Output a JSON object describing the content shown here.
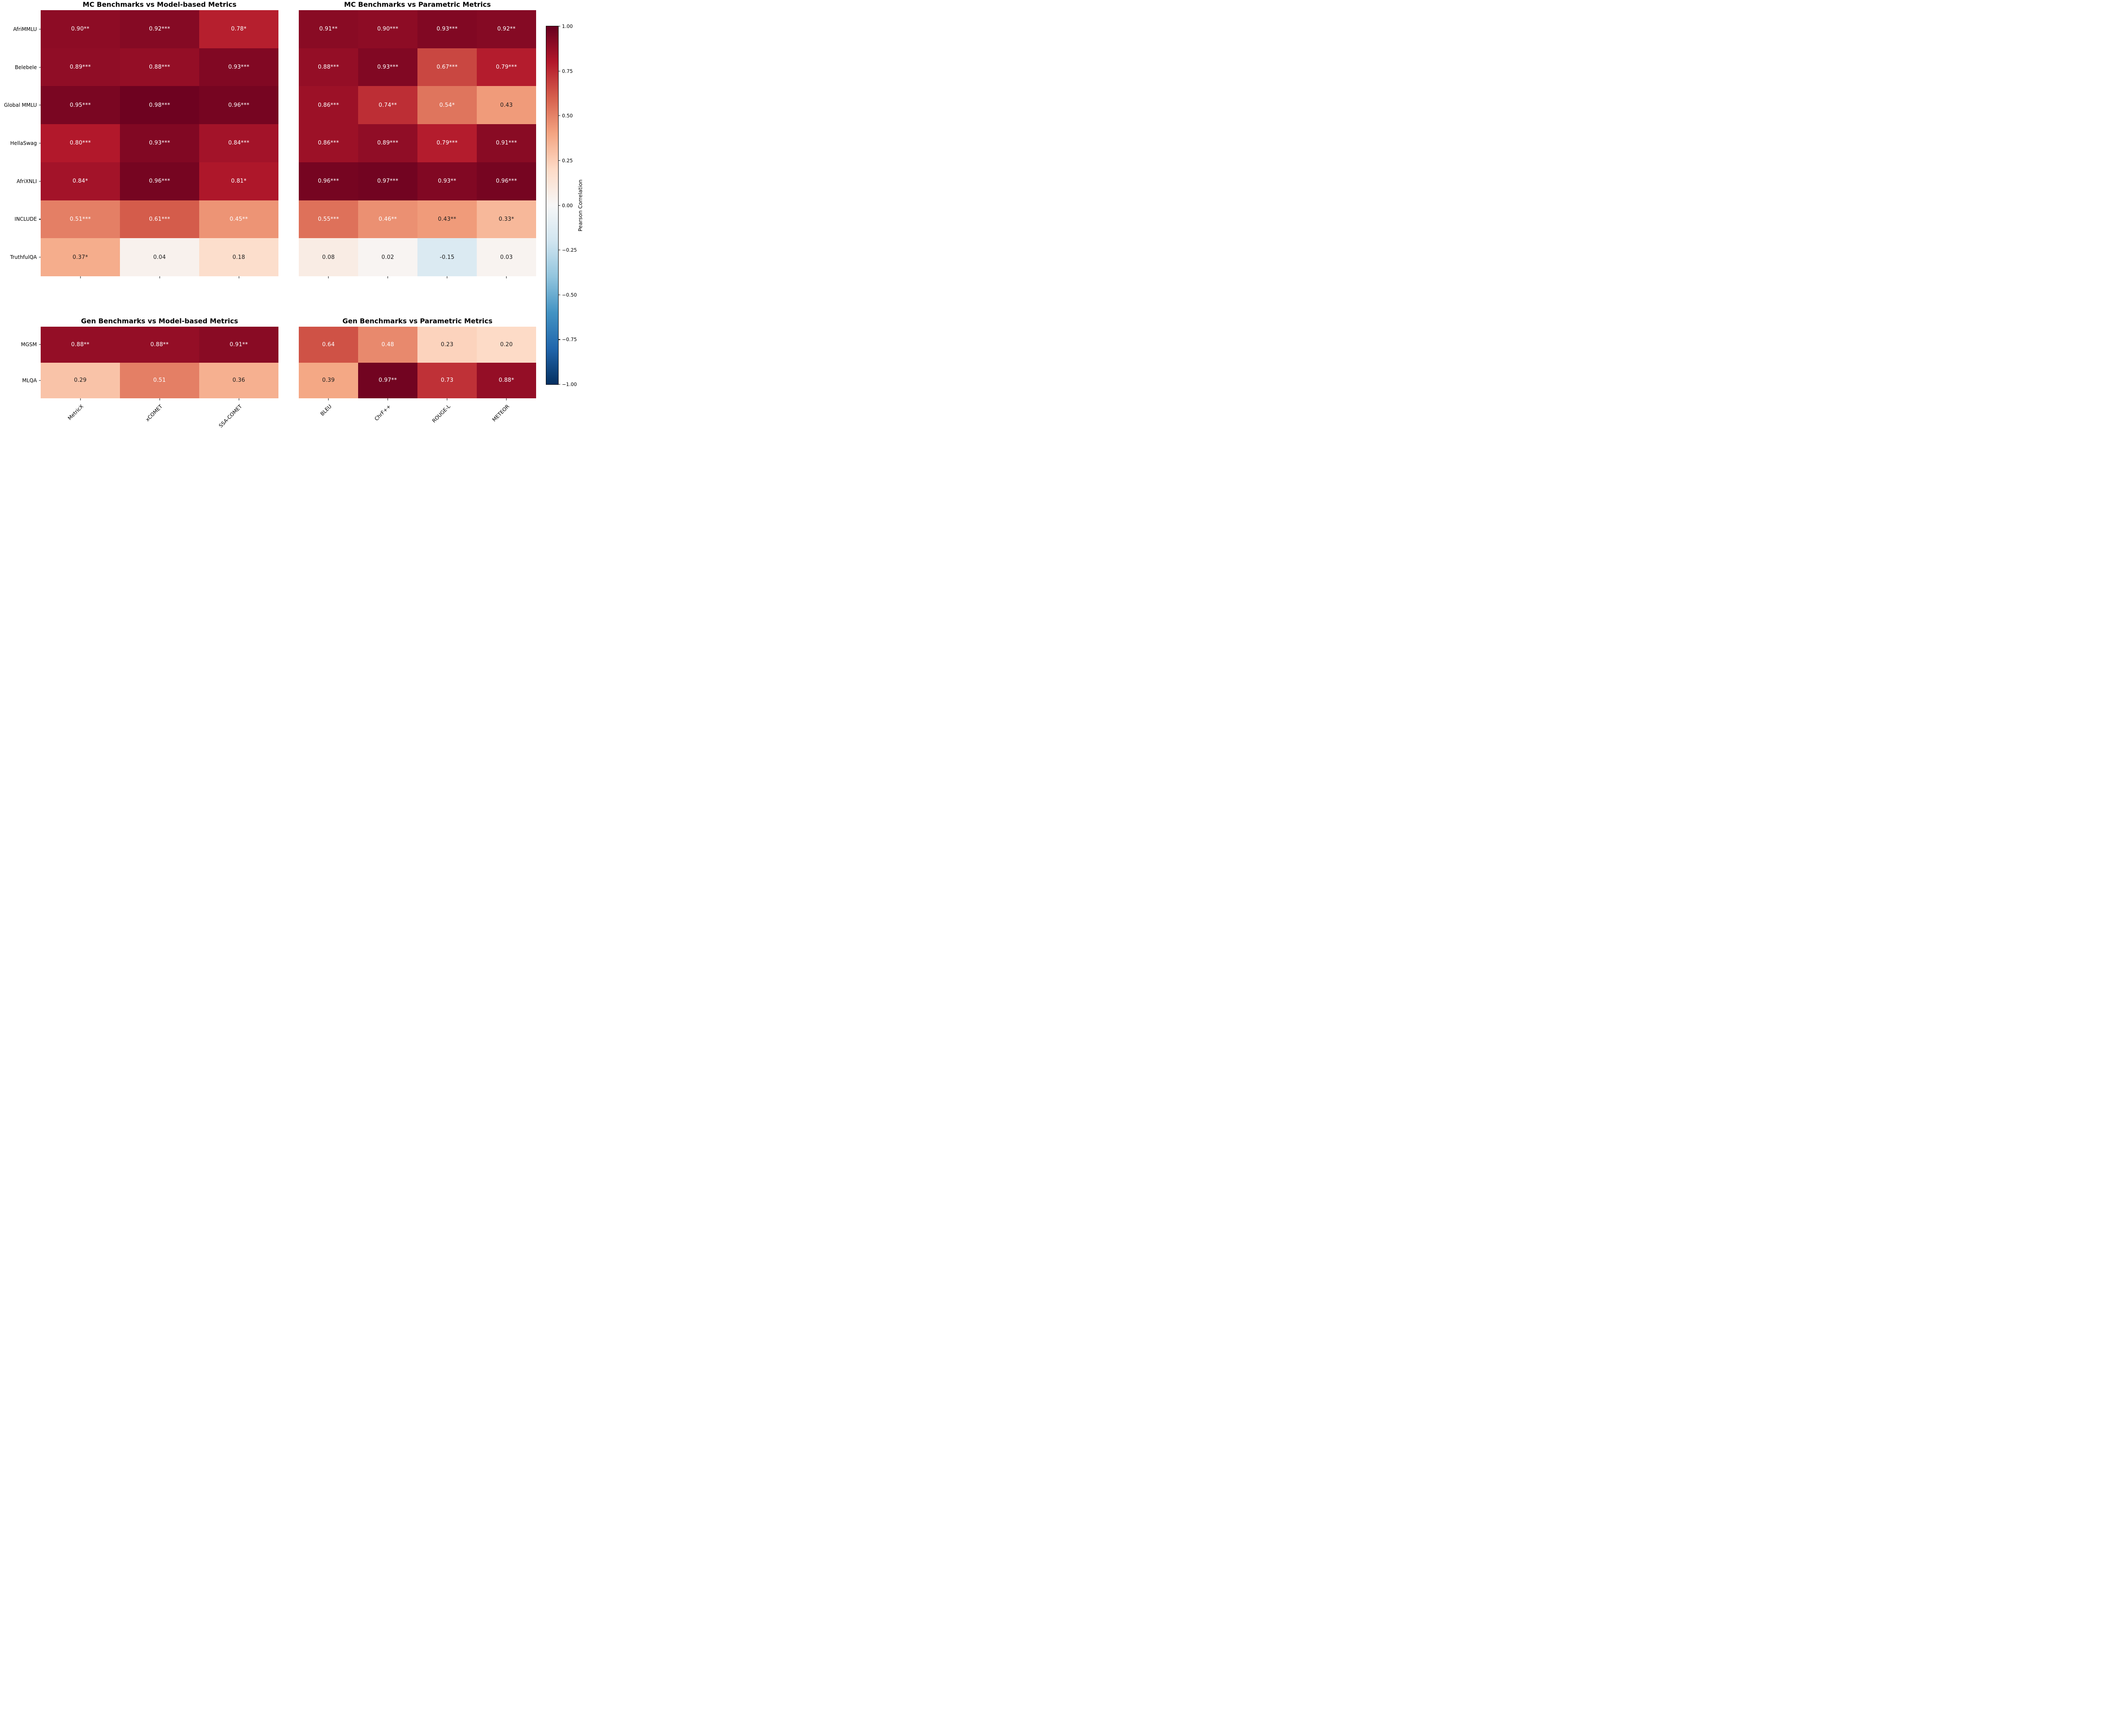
{
  "figure": {
    "background": "#ffffff"
  },
  "colormap": {
    "name": "RdBu_r",
    "vmin": -1,
    "vmax": 1,
    "anchors": [
      "#053061",
      "#2166ac",
      "#4393c3",
      "#92c5de",
      "#d1e5f0",
      "#f7f7f7",
      "#fddbc7",
      "#f4a582",
      "#d6604d",
      "#b2182b",
      "#67001f"
    ],
    "white_text_luminance_threshold": 0.408,
    "annotation_light_text_color": "#ffffff",
    "annotation_dark_text_color": "#1a1a1a"
  },
  "colorbar": {
    "label": "Pearson Correlation",
    "ticks": [
      "1.00",
      "0.75",
      "0.50",
      "0.25",
      "0.00",
      "−0.25",
      "−0.50",
      "−0.75",
      "−1.00"
    ]
  },
  "chart_data": [
    {
      "type": "heatmap",
      "title": "MC Benchmarks vs Model-based Metrics",
      "rows": [
        "AfriMMLU",
        "Belebele",
        "Global MMLU",
        "HellaSwag",
        "AfriXNLI",
        "INCLUDE",
        "TruthfulQA"
      ],
      "cols": [
        "MetricX",
        "xCOMET",
        "SSA-COMET"
      ],
      "values": [
        [
          0.9,
          0.92,
          0.78
        ],
        [
          0.89,
          0.88,
          0.93
        ],
        [
          0.95,
          0.98,
          0.96
        ],
        [
          0.8,
          0.93,
          0.84
        ],
        [
          0.84,
          0.96,
          0.81
        ],
        [
          0.51,
          0.61,
          0.45
        ],
        [
          0.37,
          0.04,
          0.18
        ]
      ],
      "annotations": [
        [
          "0.90**",
          "0.92***",
          "0.78*"
        ],
        [
          "0.89***",
          "0.88***",
          "0.93***"
        ],
        [
          "0.95***",
          "0.98***",
          "0.96***"
        ],
        [
          "0.80***",
          "0.93***",
          "0.84***"
        ],
        [
          "0.84*",
          "0.96***",
          "0.81*"
        ],
        [
          "0.51***",
          "0.61***",
          "0.45**"
        ],
        [
          "0.37*",
          "0.04",
          "0.18"
        ]
      ],
      "show_row_labels": true,
      "show_col_labels": false
    },
    {
      "type": "heatmap",
      "title": "MC Benchmarks vs Parametric Metrics",
      "rows": [
        "AfriMMLU",
        "Belebele",
        "Global MMLU",
        "HellaSwag",
        "AfriXNLI",
        "INCLUDE",
        "TruthfulQA"
      ],
      "cols": [
        "BLEU",
        "ChrF++",
        "ROUGE-L",
        "METEOR"
      ],
      "values": [
        [
          0.91,
          0.9,
          0.93,
          0.92
        ],
        [
          0.88,
          0.93,
          0.67,
          0.79
        ],
        [
          0.86,
          0.74,
          0.54,
          0.43
        ],
        [
          0.86,
          0.89,
          0.79,
          0.91
        ],
        [
          0.96,
          0.97,
          0.93,
          0.96
        ],
        [
          0.55,
          0.46,
          0.43,
          0.33
        ],
        [
          0.08,
          0.02,
          -0.15,
          0.03
        ]
      ],
      "annotations": [
        [
          "0.91**",
          "0.90***",
          "0.93***",
          "0.92**"
        ],
        [
          "0.88***",
          "0.93***",
          "0.67***",
          "0.79***"
        ],
        [
          "0.86***",
          "0.74**",
          "0.54*",
          "0.43"
        ],
        [
          "0.86***",
          "0.89***",
          "0.79***",
          "0.91***"
        ],
        [
          "0.96***",
          "0.97***",
          "0.93**",
          "0.96***"
        ],
        [
          "0.55***",
          "0.46**",
          "0.43**",
          "0.33*"
        ],
        [
          "0.08",
          "0.02",
          "-0.15",
          "0.03"
        ]
      ],
      "show_row_labels": false,
      "show_col_labels": false
    },
    {
      "type": "heatmap",
      "title": "Gen Benchmarks vs Model-based Metrics",
      "rows": [
        "MGSM",
        "MLQA"
      ],
      "cols": [
        "MetricX",
        "xCOMET",
        "SSA-COMET"
      ],
      "values": [
        [
          0.88,
          0.88,
          0.91
        ],
        [
          0.29,
          0.51,
          0.36
        ]
      ],
      "annotations": [
        [
          "0.88**",
          "0.88**",
          "0.91**"
        ],
        [
          "0.29",
          "0.51",
          "0.36"
        ]
      ],
      "show_row_labels": true,
      "show_col_labels": true
    },
    {
      "type": "heatmap",
      "title": "Gen Benchmarks vs Parametric Metrics",
      "rows": [
        "MGSM",
        "MLQA"
      ],
      "cols": [
        "BLEU",
        "ChrF++",
        "ROUGE-L",
        "METEOR"
      ],
      "values": [
        [
          0.64,
          0.48,
          0.23,
          0.2
        ],
        [
          0.39,
          0.97,
          0.73,
          0.88
        ]
      ],
      "annotations": [
        [
          "0.64",
          "0.48",
          "0.23",
          "0.20"
        ],
        [
          "0.39",
          "0.97**",
          "0.73",
          "0.88*"
        ]
      ],
      "show_row_labels": false,
      "show_col_labels": true
    }
  ]
}
